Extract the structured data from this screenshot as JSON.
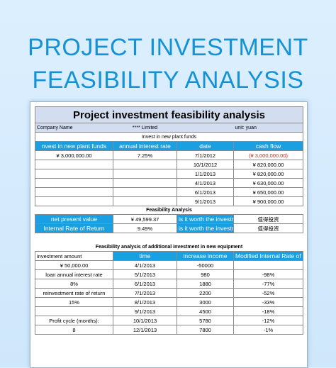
{
  "hero": {
    "line1": "PROJECT INVESTMENT",
    "line2": "FEASIBILITY ANALYSIS"
  },
  "sheet": {
    "title": "Project investment feasibility analysis",
    "company_label": "Company Name",
    "company_value": "**** Limited",
    "unit": "unit: yuan",
    "section1_title": "Invest in new plant funds",
    "section1_headers": [
      "nvest in new plant funds",
      "annual interest rate",
      "date",
      "cash flow"
    ],
    "section1_first": {
      "investment": "¥ 3,000,000.00",
      "rate": "7.25%"
    },
    "section1_dates": [
      "7/1/2012",
      "10/1/2012",
      "1/1/2013",
      "4/1/2013",
      "6/1/2013",
      "9/1/2013"
    ],
    "section1_cashflows": [
      "(¥ 3,000,000.00)",
      "¥ 820,000.00",
      "¥ 820,000.00",
      "¥ 630,000.00",
      "¥ 650,000.00",
      "¥ 900,000.00"
    ],
    "feasibility_title": "Feasibility Analysis",
    "feasibility_rows": [
      {
        "label": "net present value",
        "value": "¥ 49,599.37",
        "question": "is it worth the investme",
        "answer": "值得投资"
      },
      {
        "label": "Internal Rate of Return",
        "value": "9.49%",
        "question": "is it worth the investme",
        "answer": "值得投资"
      }
    ],
    "section3_title": "Feasibility analysis of additional investment in new equipment",
    "section3_headers": [
      "investment amount",
      "time",
      "increase income",
      "Modified Internal Rate of Return"
    ],
    "section3_left": [
      "¥ 50,000.00",
      "loan annual interest rate",
      "8%",
      "reinvestment rate of return",
      "15%",
      "",
      "Profit cycle (months):",
      "8"
    ],
    "section3_times": [
      "4/1/2013",
      "5/1/2013",
      "6/1/2013",
      "7/1/2013",
      "8/1/2013",
      "9/1/2013",
      "10/1/2013",
      "12/1/2013"
    ],
    "section3_income": [
      "-50000",
      "980",
      "1880",
      "2200",
      "3000",
      "4500",
      "5780",
      "7800"
    ],
    "section3_mirr": [
      "",
      "-98%",
      "-77%",
      "-52%",
      "-33%",
      "-18%",
      "-12%",
      "-1%"
    ]
  }
}
